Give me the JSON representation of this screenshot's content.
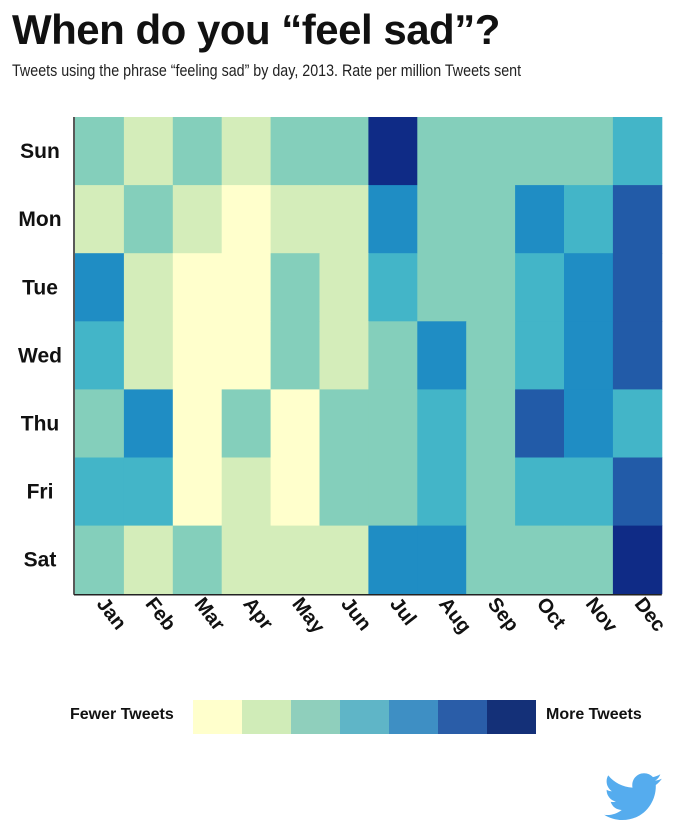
{
  "title": "When do you “feel sad”?",
  "subtitle": "Tweets using the phrase “feeling sad” by day, 2013. Rate per million Tweets sent",
  "legend": {
    "low_label": "Fewer Tweets",
    "high_label": "More Tweets",
    "colors": [
      "#ffffcc",
      "#d0ecb8",
      "#8fcfbc",
      "#5fb5c7",
      "#3e8fc4",
      "#2a5da8",
      "#143078"
    ]
  },
  "icons": {
    "logo": "twitter-bird-icon"
  },
  "chart_data": {
    "type": "heatmap",
    "x_categories": [
      "Jan",
      "Feb",
      "Mar",
      "Apr",
      "May",
      "Jun",
      "Jul",
      "Aug",
      "Sep",
      "Oct",
      "Nov",
      "Dec"
    ],
    "y_categories": [
      "Sun",
      "Mon",
      "Tue",
      "Wed",
      "Thu",
      "Fri",
      "Sat"
    ],
    "level_colors": [
      "#ffffcc",
      "#d4edba",
      "#84cfbb",
      "#43b5c8",
      "#1f8dc4",
      "#225ba8",
      "#0f2b86"
    ],
    "levels": [
      [
        2,
        1,
        2,
        1,
        2,
        2,
        6,
        2,
        2,
        2,
        2,
        3
      ],
      [
        1,
        2,
        1,
        0,
        1,
        1,
        4,
        2,
        2,
        4,
        3,
        5
      ],
      [
        4,
        1,
        0,
        0,
        2,
        1,
        3,
        2,
        2,
        3,
        4,
        5
      ],
      [
        3,
        1,
        0,
        0,
        2,
        1,
        2,
        4,
        2,
        3,
        4,
        5
      ],
      [
        2,
        4,
        0,
        2,
        0,
        2,
        2,
        3,
        2,
        5,
        4,
        3
      ],
      [
        3,
        3,
        0,
        1,
        0,
        2,
        2,
        3,
        2,
        3,
        3,
        5
      ],
      [
        2,
        1,
        2,
        1,
        1,
        1,
        4,
        4,
        2,
        2,
        2,
        6
      ]
    ]
  }
}
